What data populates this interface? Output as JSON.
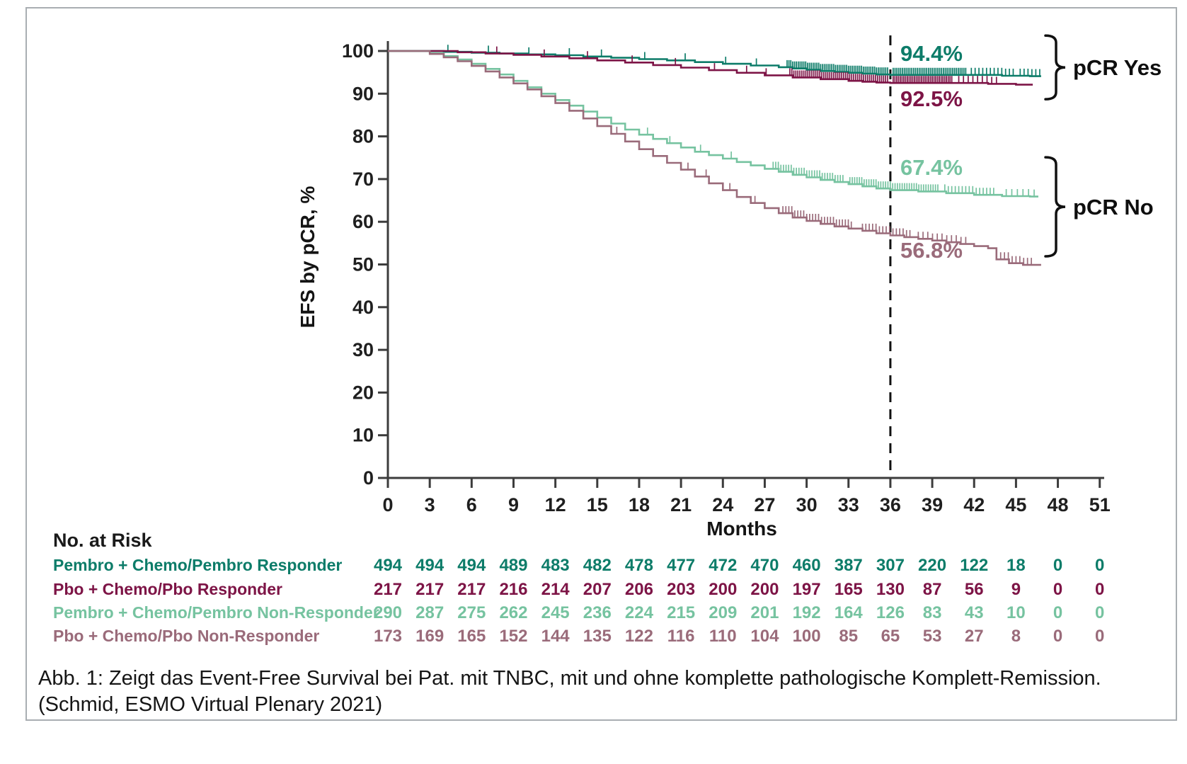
{
  "figure": {
    "kind": "kaplan-meier-survival-plot",
    "frame_border_color": "#a9aeb2",
    "background": "#ffffff"
  },
  "chart_data": {
    "type": "line",
    "subtype": "kaplan-meier-step",
    "title": "",
    "xlabel": "Months",
    "ylabel": "EFS by pCR, %",
    "xlim": [
      0,
      51
    ],
    "xticks": [
      0,
      3,
      6,
      9,
      12,
      15,
      18,
      21,
      24,
      27,
      30,
      33,
      36,
      39,
      42,
      45,
      48,
      51
    ],
    "ylim": [
      0,
      100
    ],
    "yticks": [
      0,
      10,
      20,
      30,
      40,
      50,
      60,
      70,
      80,
      90,
      100
    ],
    "grid": false,
    "axis_color": "#3c3c3c",
    "tick_label_color": "#1f1f1f",
    "reference_line": {
      "x": 36,
      "style": "dashed",
      "color": "#111111"
    },
    "series": [
      {
        "name": "Pembro + Chemo/Pembro Responder",
        "color": "#0d7c69",
        "value_at_36_months": "94.4%",
        "points": [
          [
            0,
            100
          ],
          [
            4,
            99.8
          ],
          [
            6,
            99.6
          ],
          [
            8,
            99.4
          ],
          [
            10,
            99.2
          ],
          [
            12,
            99
          ],
          [
            14,
            98.7
          ],
          [
            16,
            98.4
          ],
          [
            18,
            98.1
          ],
          [
            20,
            97.8
          ],
          [
            22,
            97.4
          ],
          [
            24,
            97
          ],
          [
            26,
            96.6
          ],
          [
            28,
            96.2
          ],
          [
            29,
            95.9
          ],
          [
            30,
            95.6
          ],
          [
            31,
            95.3
          ],
          [
            32,
            95.1
          ],
          [
            33,
            94.9
          ],
          [
            34,
            94.7
          ],
          [
            35,
            94.5
          ],
          [
            36,
            94.4
          ],
          [
            44,
            94.2
          ],
          [
            46,
            94.1
          ],
          [
            46.8,
            94.1
          ]
        ],
        "censor_singles": [
          4.3,
          7.2,
          10.1,
          13,
          15.3,
          18.4,
          21.3,
          24.2,
          26.4
        ],
        "censor_clusters": [
          [
            28.6,
            35.8,
            55
          ],
          [
            36.2,
            41.4,
            40
          ],
          [
            41.8,
            44.8,
            12
          ],
          [
            45.3,
            46.7,
            6
          ]
        ]
      },
      {
        "name": "Pbo + Chemo/Pbo Responder",
        "color": "#7d1446",
        "value_at_36_months": "92.5%",
        "points": [
          [
            0,
            100
          ],
          [
            5,
            99.7
          ],
          [
            7,
            99.4
          ],
          [
            9,
            99.1
          ],
          [
            11,
            98.7
          ],
          [
            13,
            98.3
          ],
          [
            15,
            97.8
          ],
          [
            17,
            97.3
          ],
          [
            19,
            96.7
          ],
          [
            21,
            96.1
          ],
          [
            23,
            95.5
          ],
          [
            25,
            94.9
          ],
          [
            27,
            94.3
          ],
          [
            29,
            93.8
          ],
          [
            31,
            93.4
          ],
          [
            33,
            93
          ],
          [
            34,
            92.8
          ],
          [
            35,
            92.6
          ],
          [
            36,
            92.5
          ],
          [
            43,
            92.3
          ],
          [
            45,
            92.1
          ],
          [
            46.2,
            92.1
          ]
        ],
        "censor_singles": [
          7.8,
          11.2,
          14.3,
          17.5,
          20.6,
          23.4,
          25.7,
          27.1
        ],
        "censor_clusters": [
          [
            28.8,
            35.8,
            50
          ],
          [
            36.2,
            40.4,
            34
          ],
          [
            40.9,
            43.6,
            9
          ]
        ]
      },
      {
        "name": "Pembro + Chemo/Pembro Non-Responder",
        "color": "#76c3a0",
        "value_at_36_months": "67.4%",
        "points": [
          [
            0,
            100
          ],
          [
            3,
            99.5
          ],
          [
            4,
            98.8
          ],
          [
            5,
            98
          ],
          [
            6,
            97
          ],
          [
            7,
            95.8
          ],
          [
            8,
            94.5
          ],
          [
            9,
            93
          ],
          [
            10,
            91.5
          ],
          [
            11,
            90
          ],
          [
            12,
            88.5
          ],
          [
            13,
            87.2
          ],
          [
            14,
            85.8
          ],
          [
            15,
            84.4
          ],
          [
            16,
            83
          ],
          [
            17,
            81.6
          ],
          [
            18,
            80.4
          ],
          [
            19,
            79.4
          ],
          [
            20,
            78.4
          ],
          [
            21,
            77.4
          ],
          [
            22,
            76.4
          ],
          [
            23,
            75.6
          ],
          [
            24,
            74.8
          ],
          [
            25,
            74
          ],
          [
            26,
            73.2
          ],
          [
            27,
            72.4
          ],
          [
            28,
            71.7
          ],
          [
            29,
            71
          ],
          [
            30,
            70.4
          ],
          [
            31,
            69.8
          ],
          [
            32,
            69.3
          ],
          [
            33,
            68.8
          ],
          [
            34,
            68.3
          ],
          [
            35,
            67.8
          ],
          [
            36,
            67.4
          ],
          [
            38,
            67.1
          ],
          [
            40,
            66.7
          ],
          [
            42,
            66.3
          ],
          [
            44,
            66
          ],
          [
            46,
            65.9
          ],
          [
            46.6,
            65.9
          ]
        ],
        "censor_singles": [
          18.6,
          20.2,
          22.4,
          24.6
        ],
        "censor_clusters": [
          [
            27.6,
            32.6,
            28
          ],
          [
            33.1,
            39.4,
            38
          ],
          [
            39.9,
            43.4,
            15
          ],
          [
            44.3,
            46.3,
            6
          ]
        ]
      },
      {
        "name": "Pbo + Chemo/Pbo Non-Responder",
        "color": "#9a6b7a",
        "value_at_36_months": "56.8%",
        "points": [
          [
            0,
            100
          ],
          [
            3,
            99.3
          ],
          [
            4,
            98.5
          ],
          [
            5,
            97.6
          ],
          [
            6,
            96.5
          ],
          [
            7,
            95.2
          ],
          [
            8,
            93.8
          ],
          [
            9,
            92.4
          ],
          [
            10,
            91
          ],
          [
            11,
            89.4
          ],
          [
            12,
            87.8
          ],
          [
            13,
            86
          ],
          [
            14,
            84.2
          ],
          [
            15,
            82.4
          ],
          [
            16,
            80.6
          ],
          [
            17,
            78.8
          ],
          [
            18,
            77
          ],
          [
            19,
            75.4
          ],
          [
            20,
            73.8
          ],
          [
            21,
            72.2
          ],
          [
            22,
            70.6
          ],
          [
            23,
            69
          ],
          [
            24,
            67.4
          ],
          [
            25,
            65.8
          ],
          [
            26,
            64.4
          ],
          [
            27,
            63.2
          ],
          [
            28,
            62
          ],
          [
            29,
            61
          ],
          [
            30,
            60.2
          ],
          [
            31,
            59.5
          ],
          [
            32,
            58.9
          ],
          [
            33,
            58.4
          ],
          [
            34,
            57.9
          ],
          [
            35,
            57.3
          ],
          [
            36,
            56.8
          ],
          [
            37,
            56.4
          ],
          [
            38,
            56
          ],
          [
            39,
            55.6
          ],
          [
            40,
            55.2
          ],
          [
            41,
            54.8
          ],
          [
            42,
            54.3
          ],
          [
            43,
            53.8
          ],
          [
            43.6,
            51.2
          ],
          [
            44.5,
            50.3
          ],
          [
            45.5,
            49.9
          ],
          [
            46.8,
            49.9
          ]
        ],
        "censor_singles": [
          16.4,
          21.5,
          22.8,
          24.5,
          26.3
        ],
        "censor_clusters": [
          [
            28.3,
            33.2,
            24
          ],
          [
            34,
            37.4,
            15
          ],
          [
            38,
            41.4,
            11
          ],
          [
            43.9,
            46.1,
            9
          ]
        ]
      }
    ],
    "annotations": [
      {
        "text": "94.4%",
        "color": "#0d7c69",
        "x": 36.7,
        "y_pct": 97.7
      },
      {
        "text": "92.5%",
        "color": "#7d1446",
        "x": 36.7,
        "y_pct": 87.1
      },
      {
        "text": "67.4%",
        "color": "#76c3a0",
        "x": 36.7,
        "y_pct": 71.0
      },
      {
        "text": "56.8%",
        "color": "#9a6b7a",
        "x": 36.7,
        "y_pct": 51.6
      }
    ],
    "group_brackets": [
      {
        "label": "pCR Yes",
        "pct_top": 103.6,
        "pct_bottom": 88.7
      },
      {
        "label": "pCR No",
        "pct_top": 75.1,
        "pct_bottom": 51.9
      }
    ]
  },
  "risk_table": {
    "title": "No. at Risk",
    "title_color": "#1a1a1a",
    "columns": [
      0,
      3,
      6,
      9,
      12,
      15,
      18,
      21,
      24,
      27,
      30,
      33,
      36,
      39,
      42,
      45,
      48,
      51
    ],
    "rows": [
      {
        "label": "Pembro + Chemo/Pembro Responder",
        "color": "#0d7c69",
        "values": [
          494,
          494,
          494,
          489,
          483,
          482,
          478,
          477,
          472,
          470,
          460,
          387,
          307,
          220,
          122,
          18,
          0,
          0
        ]
      },
      {
        "label": "Pbo + Chemo/Pbo Responder",
        "color": "#7d1446",
        "values": [
          217,
          217,
          217,
          216,
          214,
          207,
          206,
          203,
          200,
          200,
          197,
          165,
          130,
          87,
          56,
          9,
          0,
          0
        ]
      },
      {
        "label": "Pembro + Chemo/Pembro Non-Responder",
        "color": "#76c3a0",
        "values": [
          290,
          287,
          275,
          262,
          245,
          236,
          224,
          215,
          209,
          201,
          192,
          164,
          126,
          83,
          43,
          10,
          0,
          0
        ]
      },
      {
        "label": "Pbo + Chemo/Pbo Non-Responder",
        "color": "#9a6b7a",
        "values": [
          173,
          169,
          165,
          152,
          144,
          135,
          122,
          116,
          110,
          104,
          100,
          85,
          65,
          53,
          27,
          8,
          0,
          0
        ]
      }
    ]
  },
  "caption": {
    "line1": "Abb. 1: Zeigt das Event-Free Survival bei Pat. mit TNBC, mit und ohne komplette pathologische Komplett-Remission.",
    "line2": "(Schmid, ESMO Virtual Plenary 2021)"
  }
}
